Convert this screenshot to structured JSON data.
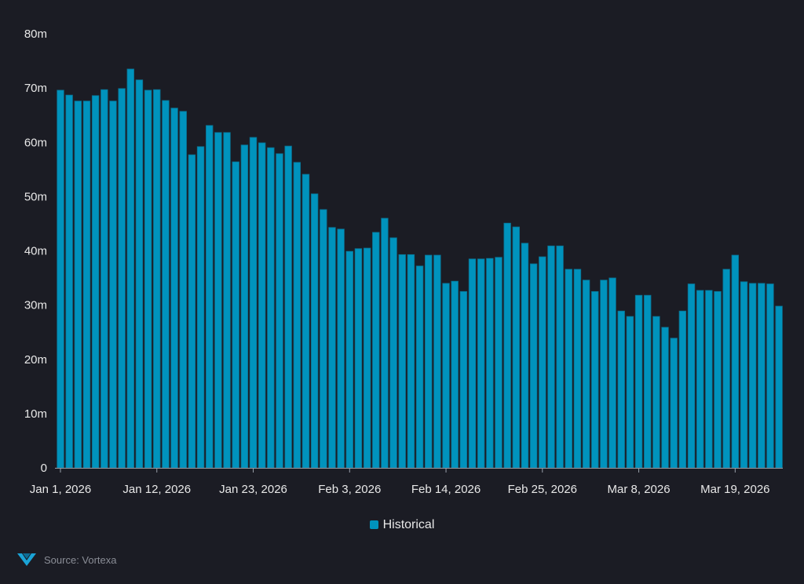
{
  "chart_data": {
    "type": "bar",
    "title": "",
    "xlabel": "",
    "ylabel": "",
    "start_date": "2026-01-01",
    "x_tick_labels": [
      "Jan 1, 2026",
      "Jan 12, 2026",
      "Jan 23, 2026",
      "Feb 3, 2026",
      "Feb 14, 2026",
      "Feb 25, 2026",
      "Mar 8, 2026",
      "Mar 19, 2026"
    ],
    "y_tick_labels": [
      "0",
      "10m",
      "20m",
      "30m",
      "40m",
      "50m",
      "60m",
      "70m",
      "80m"
    ],
    "ylim": [
      0,
      80000000
    ],
    "grid": false,
    "legend_position": "bottom",
    "series": [
      {
        "name": "Historical",
        "color": "#0093bd",
        "values_millions": [
          69.6,
          68.7,
          67.6,
          67.6,
          68.6,
          69.7,
          67.6,
          69.9,
          73.5,
          71.5,
          69.6,
          69.7,
          67.7,
          66.3,
          65.7,
          57.7,
          59.2,
          63.1,
          61.8,
          61.8,
          56.4,
          59.5,
          60.9,
          59.9,
          59.0,
          57.9,
          59.3,
          56.3,
          54.1,
          50.5,
          47.6,
          44.3,
          44.0,
          39.9,
          40.4,
          40.5,
          43.4,
          46.0,
          42.4,
          39.3,
          39.3,
          37.2,
          39.2,
          39.2,
          34.0,
          34.4,
          32.5,
          38.5,
          38.5,
          38.6,
          38.8,
          45.1,
          44.4,
          41.4,
          37.6,
          38.9,
          40.9,
          40.9,
          36.6,
          36.6,
          34.6,
          32.5,
          34.6,
          35.0,
          28.9,
          27.9,
          31.8,
          31.8,
          27.9,
          25.9,
          23.9,
          28.9,
          33.9,
          32.7,
          32.7,
          32.5,
          36.6,
          39.2,
          34.3,
          34.0,
          34.0,
          33.9,
          29.8
        ]
      }
    ]
  },
  "legend": {
    "label": "Historical"
  },
  "footer": {
    "source": "Source: Vortexa"
  },
  "colors": {
    "background": "#1b1c24",
    "bar": "#0093bd",
    "axis": "#9aa0aa"
  }
}
